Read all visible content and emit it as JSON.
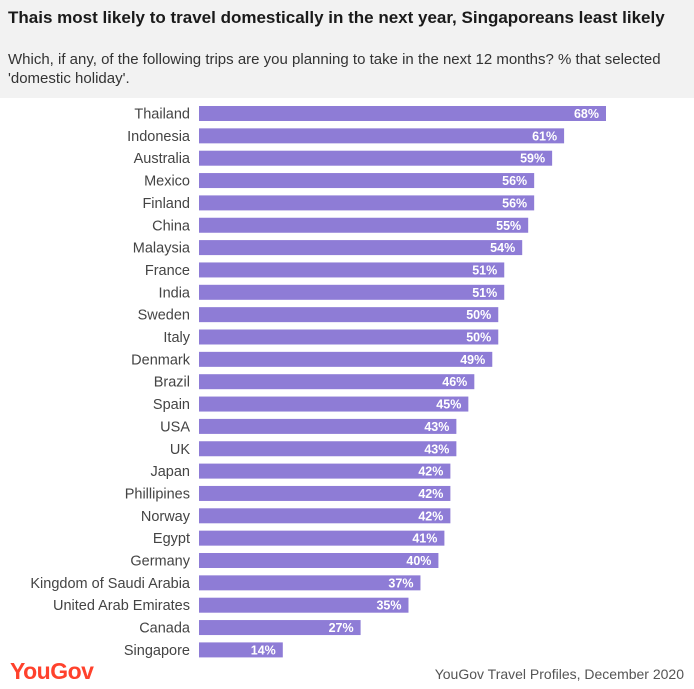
{
  "header": {
    "title": "Thais most likely to travel domestically in the next year, Singaporeans least likely",
    "subtitle": "Which, if any, of the following trips are you planning to take in the next 12 months? % that selected 'domestic holiday'."
  },
  "footer": {
    "logo": "YouGov",
    "source": "YouGov Travel Profiles, December 2020"
  },
  "colors": {
    "bar": "#8e7cd6",
    "header_bg": "#f2f2f2",
    "logo": "#ff412c"
  },
  "chart_data": {
    "type": "bar",
    "orientation": "horizontal",
    "categories": [
      "Thailand",
      "Indonesia",
      "Australia",
      "Mexico",
      "Finland",
      "China",
      "Malaysia",
      "France",
      "India",
      "Sweden",
      "Italy",
      "Denmark",
      "Brazil",
      "Spain",
      "USA",
      "UK",
      "Japan",
      "Phillipines",
      "Norway",
      "Egypt",
      "Germany",
      "Kingdom of Saudi Arabia",
      "United Arab Emirates",
      "Canada",
      "Singapore"
    ],
    "values": [
      68,
      61,
      59,
      56,
      56,
      55,
      54,
      51,
      51,
      50,
      50,
      49,
      46,
      45,
      43,
      43,
      42,
      42,
      42,
      41,
      40,
      37,
      35,
      27,
      14
    ],
    "value_suffix": "%",
    "xlim": [
      0,
      68
    ],
    "grid": false,
    "legend": "none"
  }
}
